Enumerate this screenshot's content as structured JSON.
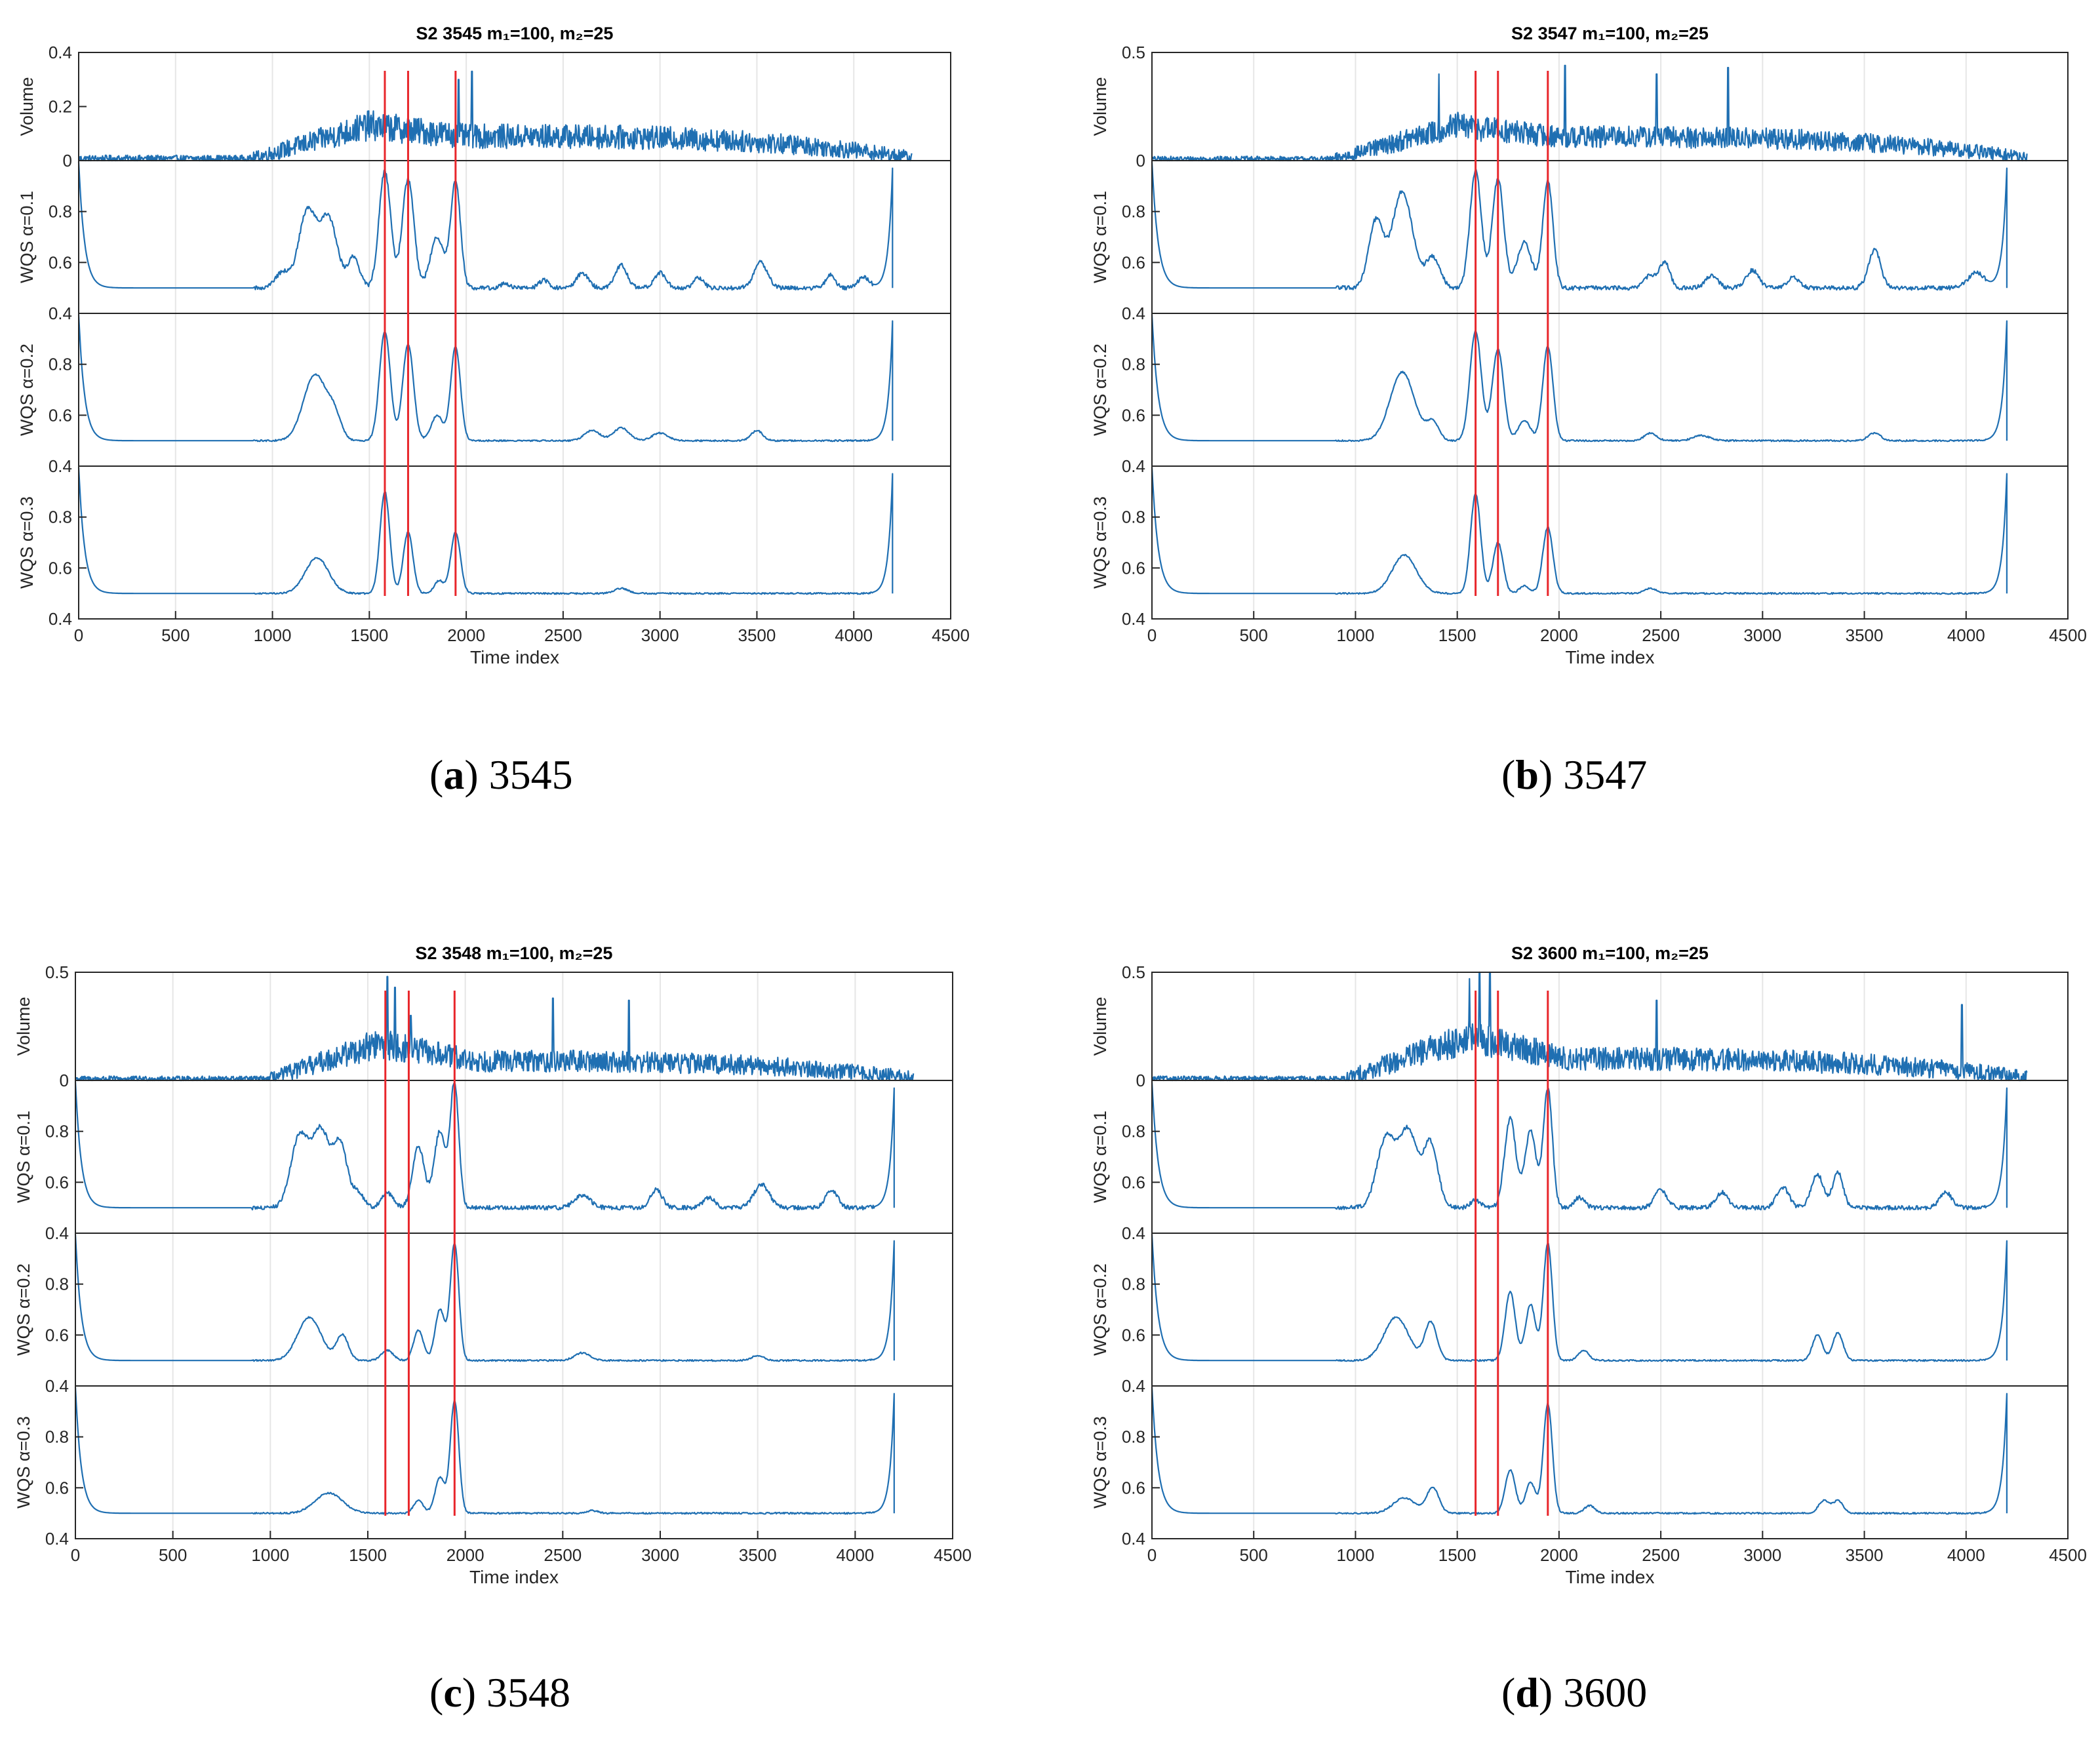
{
  "colors": {
    "series": "#1f6fb2",
    "marker": "#e8262b",
    "axis": "#262626",
    "grid": "#e6e6e6"
  },
  "chart_data": [
    {
      "type": "line",
      "id": "3545",
      "label": "a",
      "caption": "3545",
      "title": "S2 3545 m₁=100, m₂=25",
      "xlabel": "Time index",
      "xlim": [
        0,
        4500
      ],
      "xticks": [
        "0",
        "500",
        "1000",
        "1500",
        "2000",
        "2500",
        "3000",
        "3500",
        "4000",
        "4500"
      ],
      "markers": [
        1580,
        1700,
        1945
      ],
      "volume": {
        "ylabel": "Volume",
        "ylim": [
          0,
          0.4
        ],
        "yticks": [
          "0",
          "0.2",
          "0.4"
        ],
        "extent": 4300,
        "rise": 900,
        "peak": 1500,
        "peak_value": 0.13,
        "plateau": 0.09,
        "noise": 0.035,
        "spikes": [
          [
            1960,
            0.3
          ],
          [
            2030,
            0.33
          ]
        ]
      },
      "wqs_panels": [
        {
          "ylabel": "WQS α=0.1",
          "ylim": [
            0.4,
            1.0
          ],
          "yticks": [
            "0.4",
            "0.6",
            "0.8"
          ],
          "peaks": [
            [
              1050,
              0.06,
              35
            ],
            [
              1180,
              0.3,
              45
            ],
            [
              1290,
              0.27,
              45
            ],
            [
              1420,
              0.12,
              30
            ],
            [
              1580,
              0.46,
              30
            ],
            [
              1700,
              0.43,
              30
            ],
            [
              1850,
              0.2,
              35
            ],
            [
              1945,
              0.42,
              25
            ],
            [
              2200,
              0.02,
              20
            ],
            [
              2400,
              0.03,
              25
            ],
            [
              2600,
              0.06,
              30
            ],
            [
              2800,
              0.09,
              30
            ],
            [
              3000,
              0.06,
              30
            ],
            [
              3200,
              0.04,
              25
            ],
            [
              3520,
              0.1,
              35
            ],
            [
              3880,
              0.05,
              25
            ],
            [
              4050,
              0.04,
              30
            ]
          ],
          "end_spike": 0.97
        },
        {
          "ylabel": "WQS α=0.2",
          "ylim": [
            0.4,
            1.0
          ],
          "yticks": [
            "0.4",
            "0.6",
            "0.8"
          ],
          "peaks": [
            [
              1220,
              0.26,
              60
            ],
            [
              1320,
              0.08,
              35
            ],
            [
              1580,
              0.43,
              28
            ],
            [
              1700,
              0.38,
              28
            ],
            [
              1850,
              0.1,
              30
            ],
            [
              1945,
              0.37,
              25
            ],
            [
              2650,
              0.04,
              40
            ],
            [
              2800,
              0.05,
              40
            ],
            [
              3000,
              0.03,
              40
            ],
            [
              3500,
              0.04,
              30
            ]
          ],
          "end_spike": 0.97
        },
        {
          "ylabel": "WQS α=0.3",
          "ylim": [
            0.4,
            1.0
          ],
          "yticks": [
            "0.4",
            "0.6",
            "0.8"
          ],
          "peaks": [
            [
              1230,
              0.14,
              60
            ],
            [
              1580,
              0.4,
              25
            ],
            [
              1700,
              0.24,
              25
            ],
            [
              1860,
              0.05,
              25
            ],
            [
              1945,
              0.24,
              25
            ],
            [
              2800,
              0.02,
              35
            ]
          ],
          "end_spike": 0.97
        }
      ]
    },
    {
      "type": "line",
      "id": "3547",
      "label": "b",
      "caption": "3547",
      "title": "S2 3547 m₁=100, m₂=25",
      "xlabel": "Time index",
      "xlim": [
        0,
        4500
      ],
      "xticks": [
        "0",
        "500",
        "1000",
        "1500",
        "2000",
        "2500",
        "3000",
        "3500",
        "4000",
        "4500"
      ],
      "markers": [
        1590,
        1700,
        1945
      ],
      "volume": {
        "ylabel": "Volume",
        "ylim": [
          0,
          0.5
        ],
        "yticks": [
          "0",
          "0.5"
        ],
        "extent": 4300,
        "rise": 900,
        "peak": 1500,
        "peak_value": 0.16,
        "plateau": 0.11,
        "noise": 0.04,
        "spikes": [
          [
            1410,
            0.4
          ],
          [
            2030,
            0.44
          ],
          [
            2480,
            0.4
          ],
          [
            2830,
            0.43
          ]
        ]
      },
      "wqs_panels": [
        {
          "ylabel": "WQS α=0.1",
          "ylim": [
            0.4,
            1.0
          ],
          "yticks": [
            "0.4",
            "0.6",
            "0.8"
          ],
          "peaks": [
            [
              1100,
              0.26,
              35
            ],
            [
              1230,
              0.38,
              50
            ],
            [
              1380,
              0.12,
              35
            ],
            [
              1590,
              0.46,
              28
            ],
            [
              1700,
              0.43,
              28
            ],
            [
              1830,
              0.18,
              35
            ],
            [
              1945,
              0.42,
              25
            ],
            [
              2450,
              0.05,
              30
            ],
            [
              2520,
              0.1,
              25
            ],
            [
              2750,
              0.05,
              30
            ],
            [
              2950,
              0.07,
              30
            ],
            [
              3150,
              0.04,
              30
            ],
            [
              3550,
              0.15,
              30
            ],
            [
              4050,
              0.06,
              40
            ]
          ],
          "end_spike": 0.97
        },
        {
          "ylabel": "WQS α=0.2",
          "ylim": [
            0.4,
            1.0
          ],
          "yticks": [
            "0.4",
            "0.6",
            "0.8"
          ],
          "peaks": [
            [
              1230,
              0.27,
              60
            ],
            [
              1380,
              0.07,
              30
            ],
            [
              1590,
              0.43,
              28
            ],
            [
              1700,
              0.36,
              28
            ],
            [
              1830,
              0.08,
              30
            ],
            [
              1945,
              0.37,
              25
            ],
            [
              2450,
              0.03,
              30
            ],
            [
              2700,
              0.02,
              40
            ],
            [
              3550,
              0.03,
              30
            ]
          ],
          "end_spike": 0.97
        },
        {
          "ylabel": "WQS α=0.3",
          "ylim": [
            0.4,
            1.0
          ],
          "yticks": [
            "0.4",
            "0.6",
            "0.8"
          ],
          "peaks": [
            [
              1240,
              0.15,
              60
            ],
            [
              1590,
              0.39,
              25
            ],
            [
              1700,
              0.2,
              25
            ],
            [
              1830,
              0.03,
              25
            ],
            [
              1945,
              0.26,
              25
            ],
            [
              2450,
              0.02,
              30
            ]
          ],
          "end_spike": 0.97
        }
      ]
    },
    {
      "type": "line",
      "id": "3548",
      "label": "c",
      "caption": "3548",
      "title": "S2 3548 m₁=100, m₂=25",
      "xlabel": "Time index",
      "xlim": [
        0,
        4500
      ],
      "xticks": [
        "0",
        "500",
        "1000",
        "1500",
        "2000",
        "2500",
        "3000",
        "3500",
        "4000",
        "4500"
      ],
      "markers": [
        1590,
        1710,
        1945
      ],
      "volume": {
        "ylabel": "Volume",
        "ylim": [
          0,
          0.5
        ],
        "yticks": [
          "0",
          "0.5"
        ],
        "extent": 4300,
        "rise": 1000,
        "peak": 1550,
        "peak_value": 0.17,
        "plateau": 0.09,
        "noise": 0.045,
        "spikes": [
          [
            1600,
            0.48
          ],
          [
            1640,
            0.43
          ],
          [
            1720,
            0.3
          ],
          [
            2450,
            0.38
          ],
          [
            2840,
            0.37
          ]
        ]
      },
      "wqs_panels": [
        {
          "ylabel": "WQS α=0.1",
          "ylim": [
            0.4,
            1.0
          ],
          "yticks": [
            "0.4",
            "0.6",
            "0.8"
          ],
          "peaks": [
            [
              1150,
              0.28,
              45
            ],
            [
              1260,
              0.3,
              45
            ],
            [
              1360,
              0.24,
              35
            ],
            [
              1450,
              0.06,
              30
            ],
            [
              1600,
              0.06,
              30
            ],
            [
              1760,
              0.24,
              30
            ],
            [
              1870,
              0.3,
              30
            ],
            [
              1945,
              0.48,
              22
            ],
            [
              2600,
              0.05,
              40
            ],
            [
              2980,
              0.07,
              30
            ],
            [
              3250,
              0.04,
              30
            ],
            [
              3520,
              0.09,
              40
            ],
            [
              3880,
              0.07,
              30
            ]
          ],
          "end_spike": 0.97
        },
        {
          "ylabel": "WQS α=0.2",
          "ylim": [
            0.4,
            1.0
          ],
          "yticks": [
            "0.4",
            "0.6",
            "0.8"
          ],
          "peaks": [
            [
              1200,
              0.17,
              60
            ],
            [
              1370,
              0.1,
              30
            ],
            [
              1600,
              0.04,
              30
            ],
            [
              1760,
              0.12,
              25
            ],
            [
              1870,
              0.2,
              25
            ],
            [
              1945,
              0.46,
              22
            ],
            [
              2600,
              0.03,
              40
            ],
            [
              3500,
              0.02,
              30
            ]
          ],
          "end_spike": 0.97
        },
        {
          "ylabel": "WQS α=0.3",
          "ylim": [
            0.4,
            1.0
          ],
          "yticks": [
            "0.4",
            "0.6",
            "0.8"
          ],
          "peaks": [
            [
              1300,
              0.08,
              70
            ],
            [
              1760,
              0.05,
              25
            ],
            [
              1870,
              0.14,
              25
            ],
            [
              1945,
              0.44,
              22
            ],
            [
              2650,
              0.01,
              30
            ]
          ],
          "end_spike": 0.97
        }
      ]
    },
    {
      "type": "line",
      "id": "3600",
      "label": "d",
      "caption": "3600",
      "title": "S2 3600 m₁=100, m₂=25",
      "xlabel": "Time index",
      "xlim": [
        0,
        4500
      ],
      "xticks": [
        "0",
        "500",
        "1000",
        "1500",
        "2000",
        "2500",
        "3000",
        "3500",
        "4000",
        "4500"
      ],
      "markers": [
        1590,
        1700,
        1945
      ],
      "volume": {
        "ylabel": "Volume",
        "ylim": [
          0,
          0.5
        ],
        "yticks": [
          "0",
          "0.5"
        ],
        "extent": 4300,
        "rise": 950,
        "peak": 1550,
        "peak_value": 0.2,
        "plateau": 0.1,
        "noise": 0.05,
        "spikes": [
          [
            1560,
            0.47
          ],
          [
            1610,
            0.5
          ],
          [
            1660,
            0.5
          ],
          [
            2480,
            0.37
          ],
          [
            3980,
            0.35
          ]
        ]
      },
      "wqs_panels": [
        {
          "ylabel": "WQS α=0.1",
          "ylim": [
            0.4,
            1.0
          ],
          "yticks": [
            "0.4",
            "0.6",
            "0.8"
          ],
          "peaks": [
            [
              1150,
              0.27,
              45
            ],
            [
              1260,
              0.3,
              45
            ],
            [
              1370,
              0.25,
              35
            ],
            [
              1590,
              0.03,
              25
            ],
            [
              1760,
              0.35,
              28
            ],
            [
              1860,
              0.3,
              28
            ],
            [
              1945,
              0.47,
              22
            ],
            [
              2100,
              0.04,
              25
            ],
            [
              2500,
              0.07,
              30
            ],
            [
              2800,
              0.06,
              30
            ],
            [
              3100,
              0.08,
              30
            ],
            [
              3270,
              0.13,
              30
            ],
            [
              3370,
              0.14,
              25
            ],
            [
              3900,
              0.06,
              30
            ]
          ],
          "end_spike": 0.97
        },
        {
          "ylabel": "WQS α=0.2",
          "ylim": [
            0.4,
            1.0
          ],
          "yticks": [
            "0.4",
            "0.6",
            "0.8"
          ],
          "peaks": [
            [
              1200,
              0.17,
              60
            ],
            [
              1370,
              0.15,
              30
            ],
            [
              1760,
              0.27,
              25
            ],
            [
              1860,
              0.22,
              25
            ],
            [
              1945,
              0.46,
              22
            ],
            [
              2120,
              0.04,
              25
            ],
            [
              3270,
              0.1,
              25
            ],
            [
              3370,
              0.11,
              25
            ]
          ],
          "end_spike": 0.97
        },
        {
          "ylabel": "WQS α=0.3",
          "ylim": [
            0.4,
            1.0
          ],
          "yticks": [
            "0.4",
            "0.6",
            "0.8"
          ],
          "peaks": [
            [
              1240,
              0.06,
              55
            ],
            [
              1380,
              0.1,
              30
            ],
            [
              1760,
              0.17,
              25
            ],
            [
              1860,
              0.12,
              25
            ],
            [
              1945,
              0.43,
              22
            ],
            [
              2150,
              0.03,
              25
            ],
            [
              3300,
              0.05,
              25
            ],
            [
              3370,
              0.05,
              25
            ]
          ],
          "end_spike": 0.97
        }
      ]
    }
  ]
}
